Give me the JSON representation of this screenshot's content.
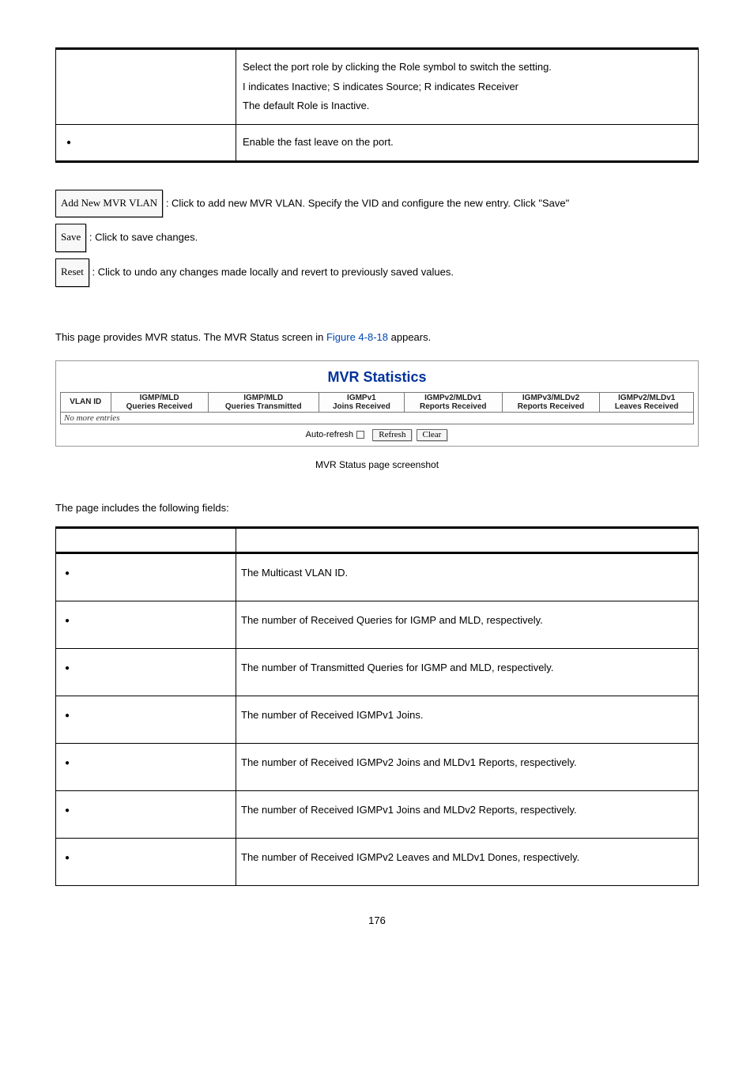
{
  "top_table": {
    "row1_lines": [
      "Select the port role by clicking the Role symbol to switch the setting.",
      "I indicates Inactive; S indicates Source; R indicates Receiver",
      "The default Role is Inactive."
    ],
    "row2_text": "Enable the fast leave on the port."
  },
  "buttons": {
    "add_label": "Add New MVR VLAN",
    "add_text": ": Click to add new MVR VLAN. Specify the VID and configure the new entry. Click \"Save\"",
    "save_label": "Save",
    "save_text": ": Click to save changes.",
    "reset_label": "Reset",
    "reset_text": ": Click to undo any changes made locally and revert to previously saved values."
  },
  "section_text_pre": "This page provides MVR status. The MVR Status screen in ",
  "figure_link": "Figure 4-8-18",
  "section_text_post": " appears.",
  "mvr": {
    "title": "MVR Statistics",
    "headers": {
      "c1": "VLAN ID",
      "c2a": "IGMP/MLD",
      "c2b": "Queries Received",
      "c3a": "IGMP/MLD",
      "c3b": "Queries Transmitted",
      "c4a": "IGMPv1",
      "c4b": "Joins Received",
      "c5a": "IGMPv2/MLDv1",
      "c5b": "Reports Received",
      "c6a": "IGMPv3/MLDv2",
      "c6b": "Reports Received",
      "c7a": "IGMPv2/MLDv1",
      "c7b": "Leaves Received"
    },
    "empty_row": "No more entries",
    "auto_refresh": "Auto-refresh",
    "refresh": "Refresh",
    "clear": "Clear",
    "colors": {
      "title": "#003399",
      "border": "#777777",
      "box_border": "#999999"
    }
  },
  "caption": "MVR Status page screenshot",
  "fields_lead": "The page includes the following fields:",
  "fields_table": {
    "h1": "",
    "h2": "",
    "rows": [
      {
        "d": "The Multicast VLAN ID."
      },
      {
        "d": "The number of Received Queries for IGMP and MLD, respectively."
      },
      {
        "d": "The number of Transmitted Queries for IGMP and MLD, respectively."
      },
      {
        "d": "The number of Received IGMPv1 Joins."
      },
      {
        "d": "The number of Received IGMPv2 Joins and MLDv1 Reports, respectively."
      },
      {
        "d": "The number of Received IGMPv1 Joins and MLDv2 Reports, respectively."
      },
      {
        "d": "The number of Received IGMPv2 Leaves and MLDv1 Dones, respectively."
      }
    ]
  },
  "page_number": "176"
}
